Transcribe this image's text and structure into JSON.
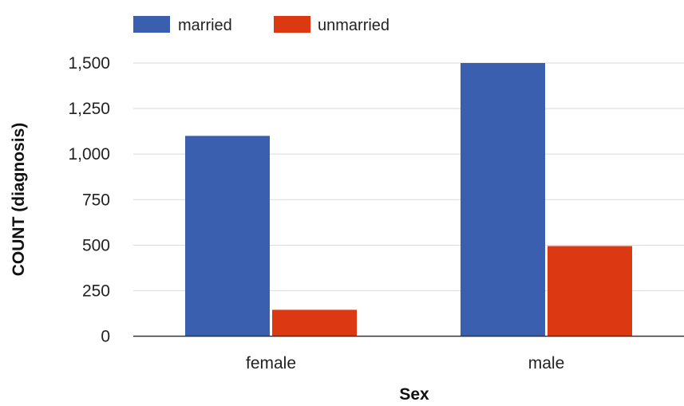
{
  "chart_data": {
    "type": "bar",
    "categories": [
      "female",
      "male"
    ],
    "series": [
      {
        "name": "married",
        "values": [
          1100,
          1500
        ],
        "color": "#3a5fae"
      },
      {
        "name": "unmarried",
        "values": [
          145,
          495
        ],
        "color": "#dc3912"
      }
    ],
    "xlabel": "Sex",
    "ylabel": "COUNT (diagnosis)",
    "ylim": [
      0,
      1500
    ],
    "yticks": [
      0,
      250,
      500,
      750,
      1000,
      1250,
      1500
    ],
    "ytick_labels": [
      "0",
      "250",
      "500",
      "750",
      "1,000",
      "1,250",
      "1,500"
    ],
    "grid": true,
    "legend_position": "top-left"
  }
}
